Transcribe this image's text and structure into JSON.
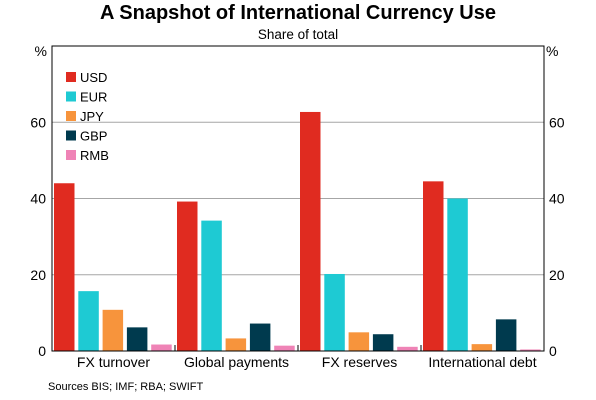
{
  "title": "A Snapshot of International Currency Use",
  "subtitle": "Share of total",
  "source": "Sources BIS; IMF; RBA; SWIFT",
  "chart_data": {
    "type": "bar",
    "categories": [
      "FX turnover",
      "Global payments",
      "FX reserves",
      "International debt"
    ],
    "series": [
      {
        "name": "USD",
        "color": "#e02b20",
        "values": [
          44,
          39.2,
          62.7,
          44.5
        ]
      },
      {
        "name": "EUR",
        "color": "#1ecad3",
        "values": [
          15.7,
          34.2,
          20.2,
          40
        ]
      },
      {
        "name": "JPY",
        "color": "#f7943c",
        "values": [
          10.8,
          3.3,
          4.9,
          1.8
        ]
      },
      {
        "name": "GBP",
        "color": "#003a4e",
        "values": [
          6.2,
          7.2,
          4.4,
          8.3
        ]
      },
      {
        "name": "RMB",
        "color": "#ef83b6",
        "values": [
          1.7,
          1.4,
          1.1,
          0.4
        ]
      }
    ],
    "yticks": [
      0,
      20,
      40,
      60
    ],
    "ylim": [
      0,
      80
    ],
    "yunit_left": "%",
    "yunit_right": "%",
    "legend_position": "top-left",
    "grid": true
  }
}
